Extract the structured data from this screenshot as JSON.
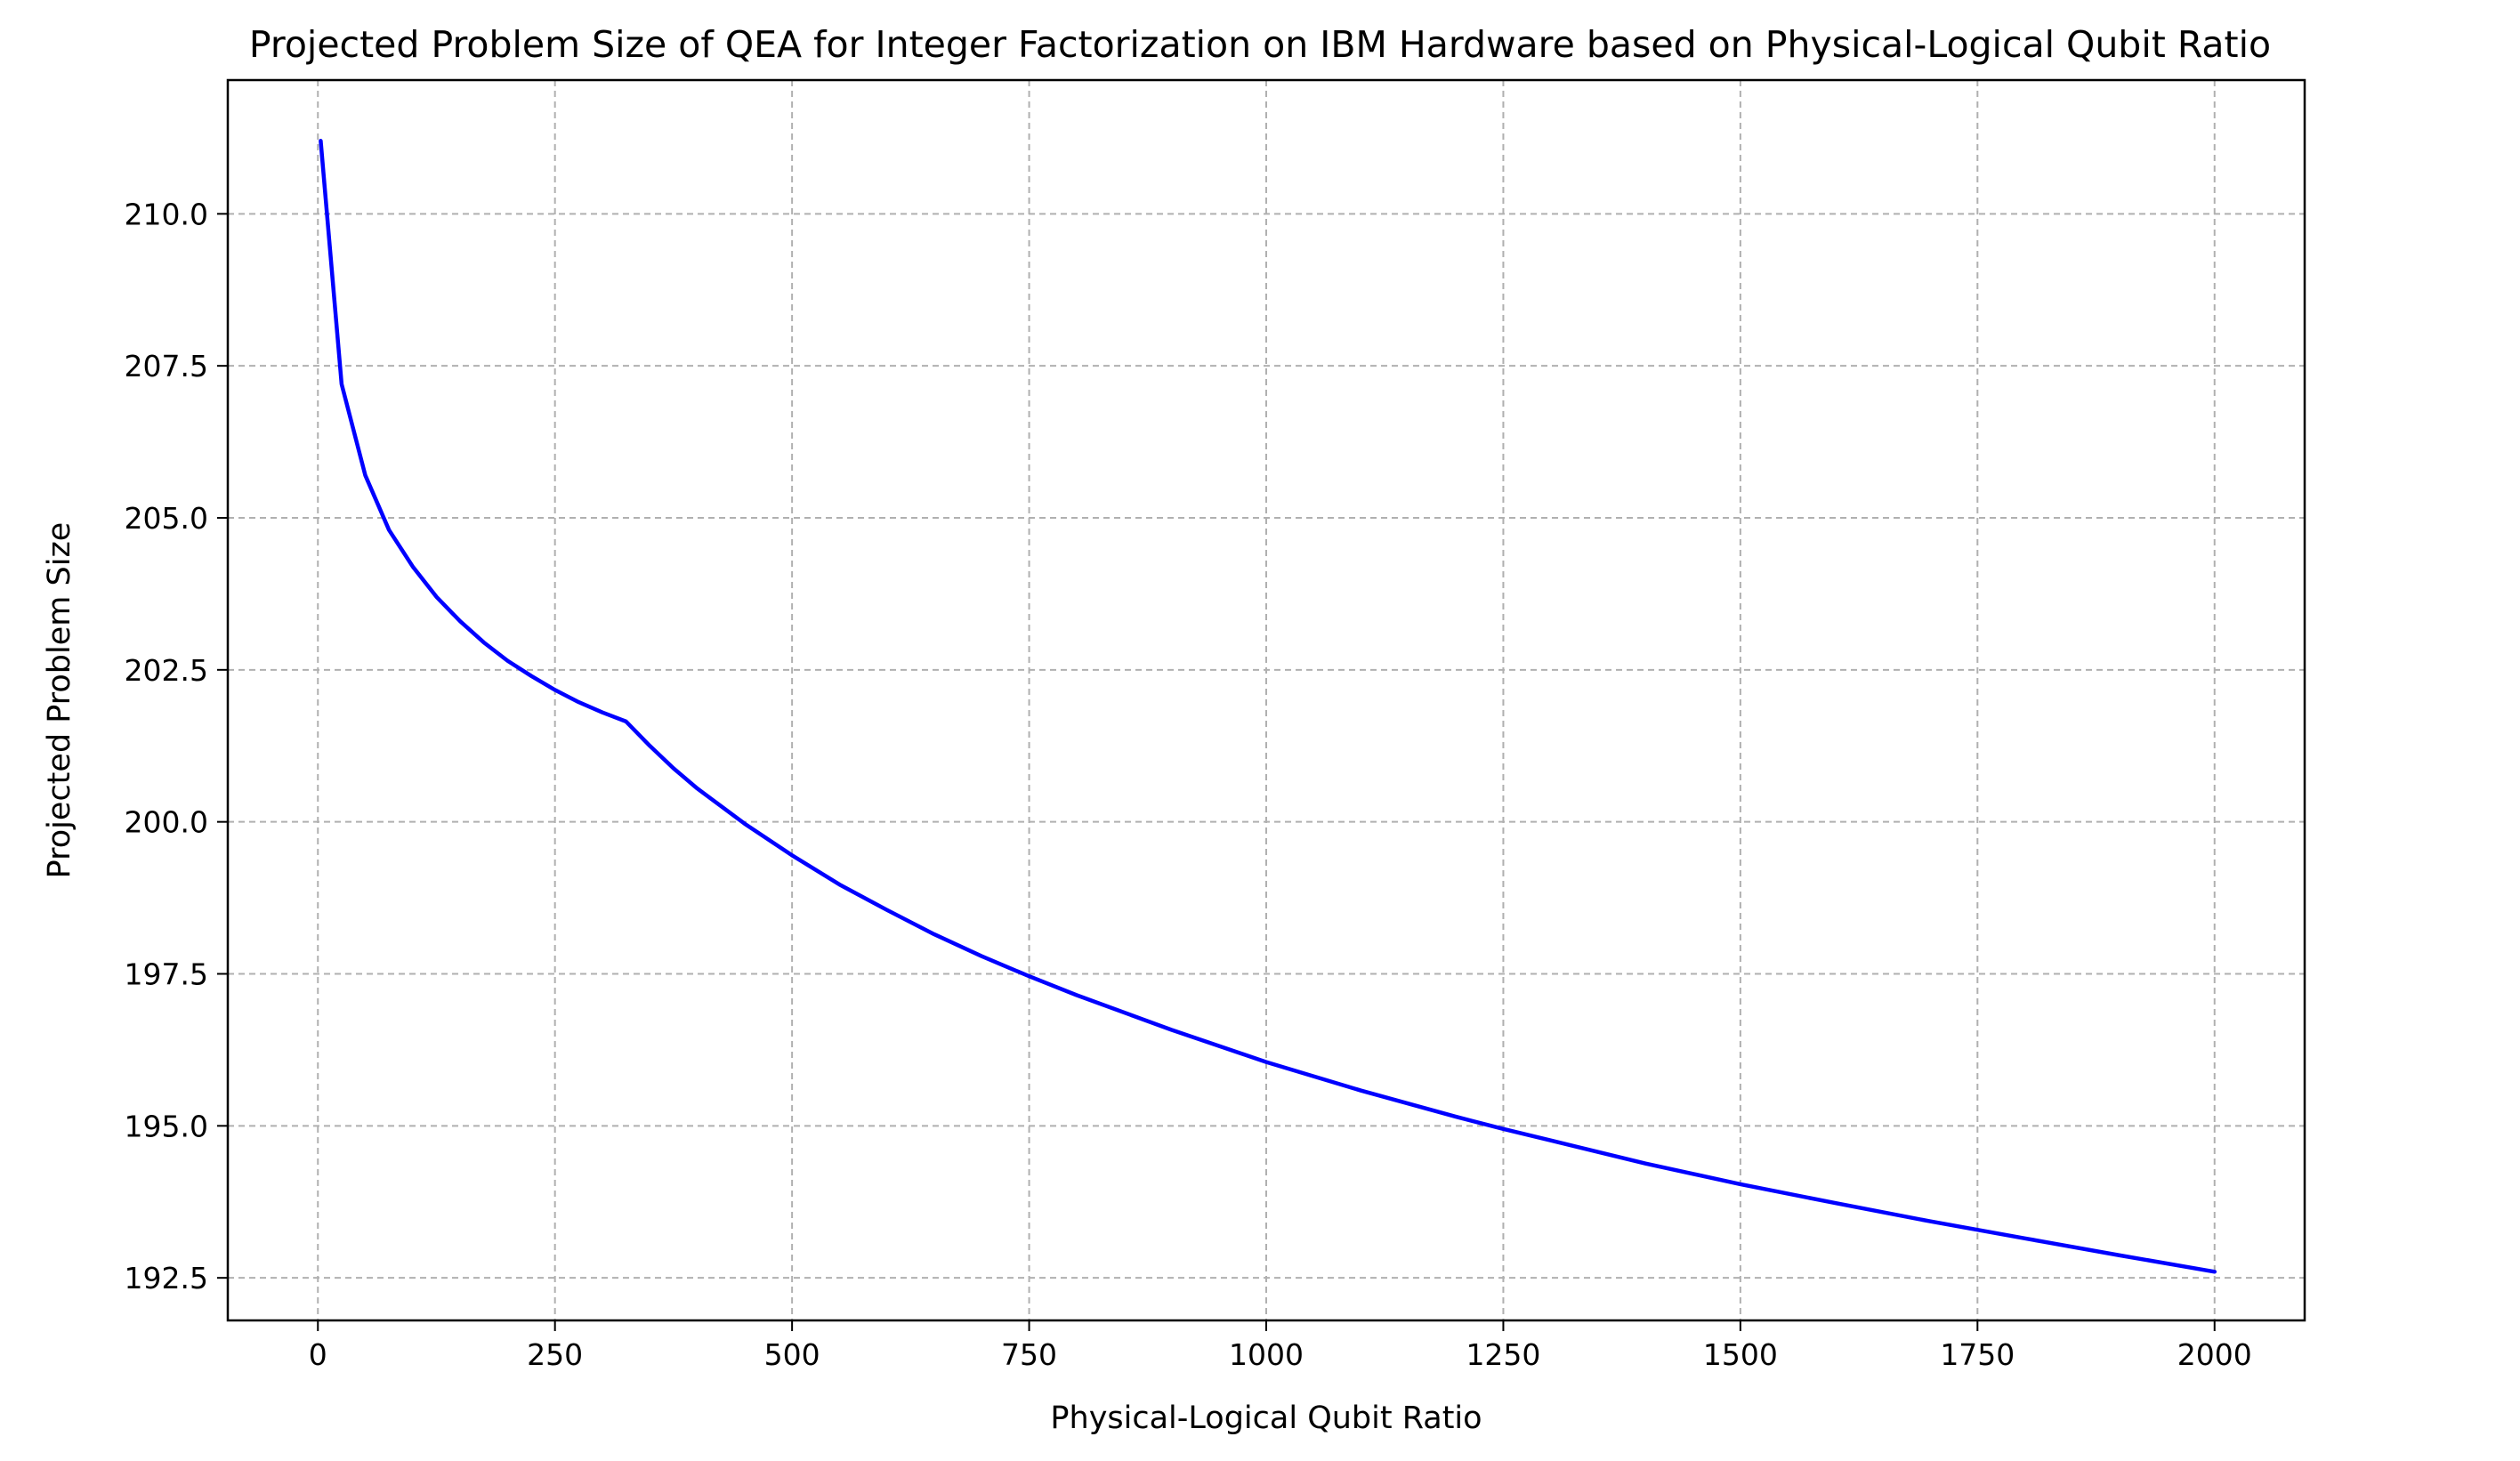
{
  "chart_data": {
    "type": "line",
    "title": "Projected Problem Size of QEA for Integer Factorization on IBM Hardware based on Physical-Logical Qubit Ratio",
    "xlabel": "Physical-Logical Qubit Ratio",
    "ylabel": "Projected Problem Size",
    "xlim": [
      -95,
      2095
    ],
    "ylim": [
      191.8,
      212.2
    ],
    "x_ticks": [
      0,
      250,
      500,
      750,
      1000,
      1250,
      1500,
      1750,
      2000
    ],
    "x_tick_labels": [
      "0",
      "250",
      "500",
      "750",
      "1000",
      "1250",
      "1500",
      "1750",
      "2000"
    ],
    "y_ticks": [
      192.5,
      195.0,
      197.5,
      200.0,
      202.5,
      205.0,
      207.5,
      210.0
    ],
    "y_tick_labels": [
      "192.5",
      "195.0",
      "197.5",
      "200.0",
      "202.5",
      "205.0",
      "207.5",
      "210.0"
    ],
    "grid": true,
    "legend": "none",
    "series": [
      {
        "color": "#0000ff",
        "x": [
          3,
          25,
          50,
          75,
          100,
          125,
          150,
          175,
          200,
          225,
          250,
          275,
          300,
          325,
          350,
          375,
          400,
          450,
          500,
          550,
          600,
          650,
          700,
          750,
          800,
          900,
          1000,
          1100,
          1200,
          1250,
          1300,
          1400,
          1500,
          1600,
          1700,
          1800,
          1900,
          2000
        ],
        "y": [
          211.2,
          207.2,
          205.7,
          204.8,
          204.2,
          203.7,
          203.3,
          202.95,
          202.65,
          202.4,
          202.17,
          201.97,
          201.8,
          201.65,
          201.25,
          200.88,
          200.55,
          199.97,
          199.45,
          198.97,
          198.55,
          198.15,
          197.79,
          197.46,
          197.15,
          196.58,
          196.05,
          195.58,
          195.15,
          194.95,
          194.76,
          194.38,
          194.04,
          193.73,
          193.43,
          193.15,
          192.87,
          192.6
        ]
      }
    ]
  }
}
